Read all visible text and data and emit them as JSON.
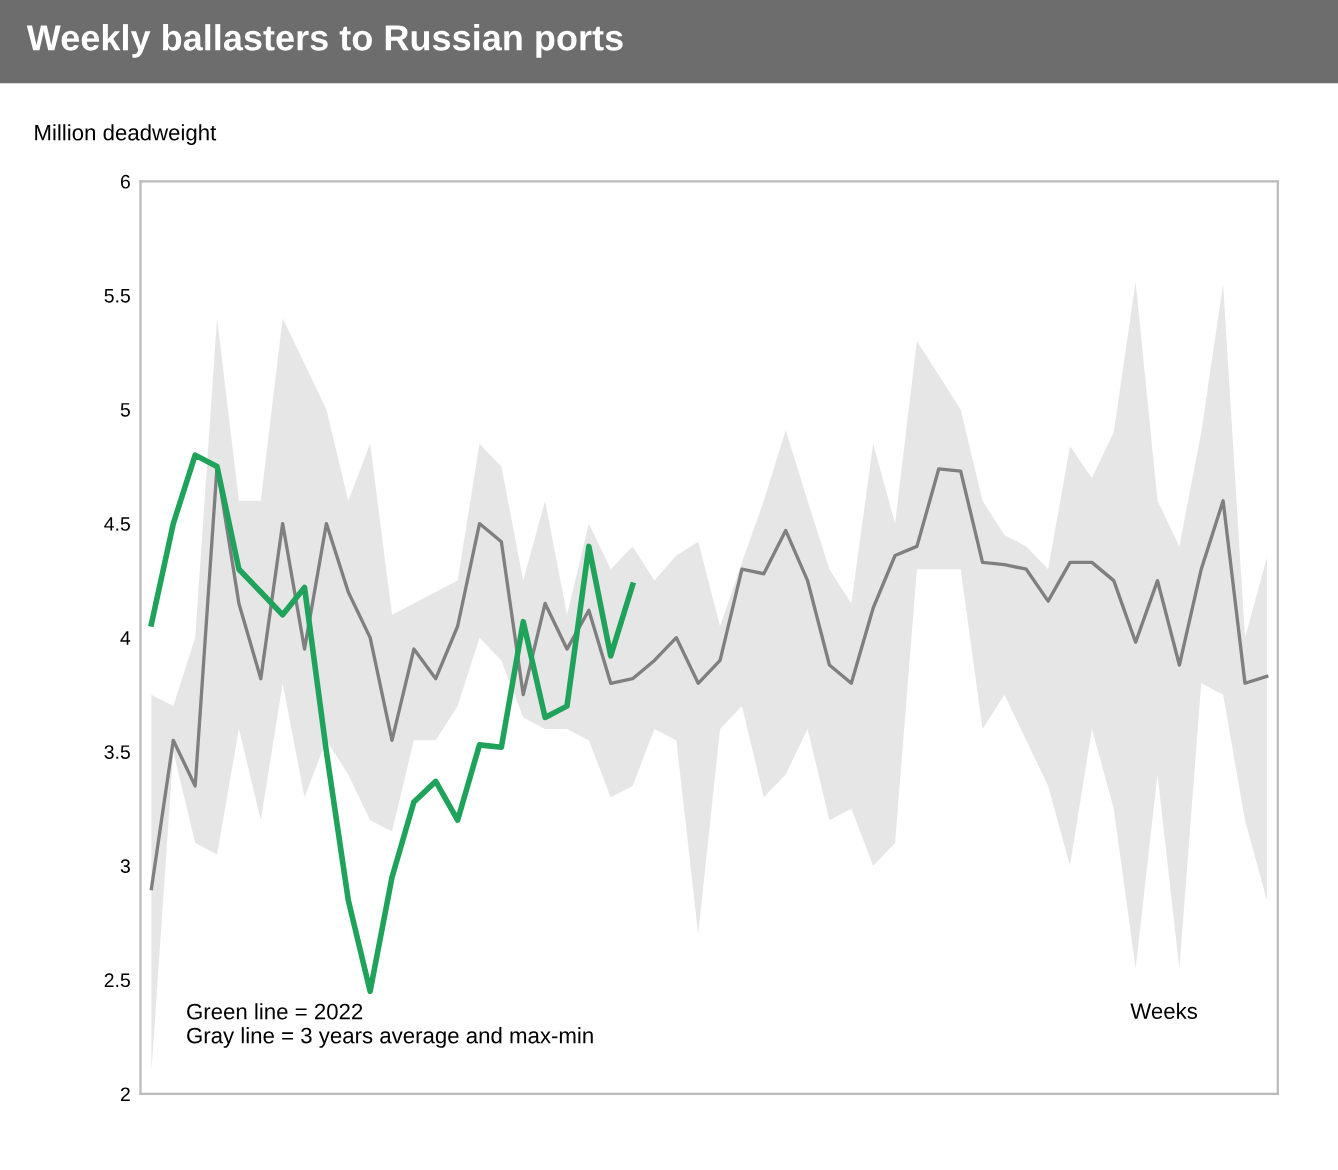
{
  "chart_data": {
    "type": "line",
    "title": "Weekly ballasters to Russian ports",
    "ylabel": "Million deadweight",
    "xlabel": "Weeks",
    "categories": [
      null,
      null,
      null,
      null,
      null,
      null,
      null,
      null,
      null,
      null,
      null,
      null,
      null,
      null,
      null,
      null,
      null,
      null,
      null,
      null,
      null,
      null,
      null,
      null,
      null,
      null,
      null,
      null,
      null,
      null,
      null,
      null,
      null,
      null,
      null,
      null,
      null,
      null,
      null,
      null,
      null,
      null,
      null,
      null,
      null,
      null,
      null,
      null,
      null,
      null,
      null,
      null
    ],
    "series": [
      {
        "color": "#7f7f7f",
        "values": [
          2.9,
          3.55,
          3.35,
          4.75,
          4.15,
          3.82,
          4.5,
          3.95,
          4.5,
          4.2,
          4.0,
          3.55,
          3.95,
          3.82,
          4.05,
          4.5,
          4.42,
          3.75,
          4.15,
          3.95,
          4.12,
          3.8,
          3.82,
          3.9,
          4.0,
          3.8,
          3.9,
          4.3,
          4.28,
          4.47,
          4.25,
          3.88,
          3.8,
          4.13,
          4.36,
          4.4,
          4.74,
          4.73,
          4.33,
          4.32,
          4.3,
          4.16,
          4.33,
          4.33,
          4.25,
          3.98,
          4.25,
          3.88,
          4.3,
          4.6,
          3.8,
          3.83
        ],
        "lower": [
          2.1,
          3.5,
          3.1,
          3.05,
          3.6,
          3.2,
          3.8,
          3.3,
          3.55,
          3.4,
          3.2,
          3.15,
          3.55,
          3.55,
          3.7,
          4.0,
          3.9,
          3.65,
          3.6,
          3.6,
          3.55,
          3.3,
          3.35,
          3.6,
          3.55,
          2.7,
          3.6,
          3.7,
          3.3,
          3.4,
          3.6,
          3.2,
          3.25,
          3.0,
          3.1,
          4.3,
          4.3,
          4.3,
          3.6,
          3.75,
          3.55,
          3.35,
          3.0,
          3.6,
          3.25,
          2.55,
          3.4,
          2.55,
          3.8,
          3.75,
          3.2,
          2.85
        ],
        "upper": [
          3.75,
          3.7,
          4.0,
          5.4,
          4.6,
          4.6,
          5.4,
          5.2,
          5.0,
          4.6,
          4.85,
          4.1,
          4.15,
          4.2,
          4.25,
          4.85,
          4.75,
          4.25,
          4.6,
          4.1,
          4.5,
          4.3,
          4.4,
          4.25,
          4.36,
          4.42,
          4.05,
          4.33,
          4.6,
          4.91,
          4.6,
          4.3,
          4.15,
          4.85,
          4.5,
          5.3,
          5.15,
          5.0,
          4.6,
          4.45,
          4.4,
          4.3,
          4.84,
          4.7,
          4.9,
          5.56,
          4.6,
          4.4,
          4.9,
          5.55,
          4.0,
          4.35
        ]
      },
      {
        "color": "#1fa35a",
        "values": [
          4.06,
          4.5,
          4.8,
          4.75,
          4.3,
          4.2,
          4.1,
          4.22,
          3.5,
          2.85,
          2.45,
          2.95,
          3.28,
          3.37,
          3.2,
          3.53,
          3.52,
          4.07,
          3.65,
          3.7,
          4.4,
          3.92,
          4.23,
          null,
          null,
          null,
          null,
          null,
          null,
          null,
          null,
          null,
          null,
          null,
          null,
          null,
          null,
          null,
          null,
          null,
          null,
          null,
          null,
          null,
          null,
          null,
          null,
          null,
          null,
          null,
          null,
          null
        ]
      }
    ],
    "ylim": [
      2,
      6
    ],
    "yticks": [
      2,
      2.5,
      3,
      3.5,
      4,
      4.5,
      5,
      5.5,
      6
    ],
    "tick_labels": "y",
    "grid": false,
    "legend": false,
    "marker": "none",
    "line_style": "solid",
    "annotations": [
      "Green line = 2022\nGray line = 3 years average and max-min"
    ]
  }
}
